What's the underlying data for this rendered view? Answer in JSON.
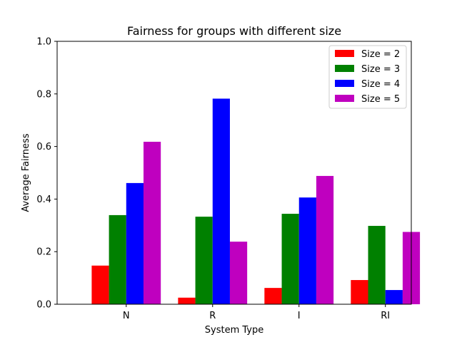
{
  "chart_data": {
    "type": "bar",
    "title": "Fairness for groups with different size",
    "xlabel": "System Type",
    "ylabel": "Average Fairness",
    "categories": [
      "N",
      "R",
      "I",
      "RI"
    ],
    "ylim": [
      0,
      1.0
    ],
    "yticks": [
      "0.0",
      "0.2",
      "0.4",
      "0.6",
      "0.8",
      "1.0"
    ],
    "grid": false,
    "legend_position": "top-right",
    "series": [
      {
        "name": "Size = 2",
        "color": "#ff0000",
        "values": [
          0.147,
          0.025,
          0.062,
          0.092
        ]
      },
      {
        "name": "Size = 3",
        "color": "#008000",
        "values": [
          0.339,
          0.333,
          0.344,
          0.298
        ]
      },
      {
        "name": "Size = 4",
        "color": "#0000ff",
        "values": [
          0.461,
          0.782,
          0.406,
          0.054
        ]
      },
      {
        "name": "Size = 5",
        "color": "#bf00bf",
        "values": [
          0.618,
          0.238,
          0.488,
          0.275
        ]
      }
    ]
  }
}
